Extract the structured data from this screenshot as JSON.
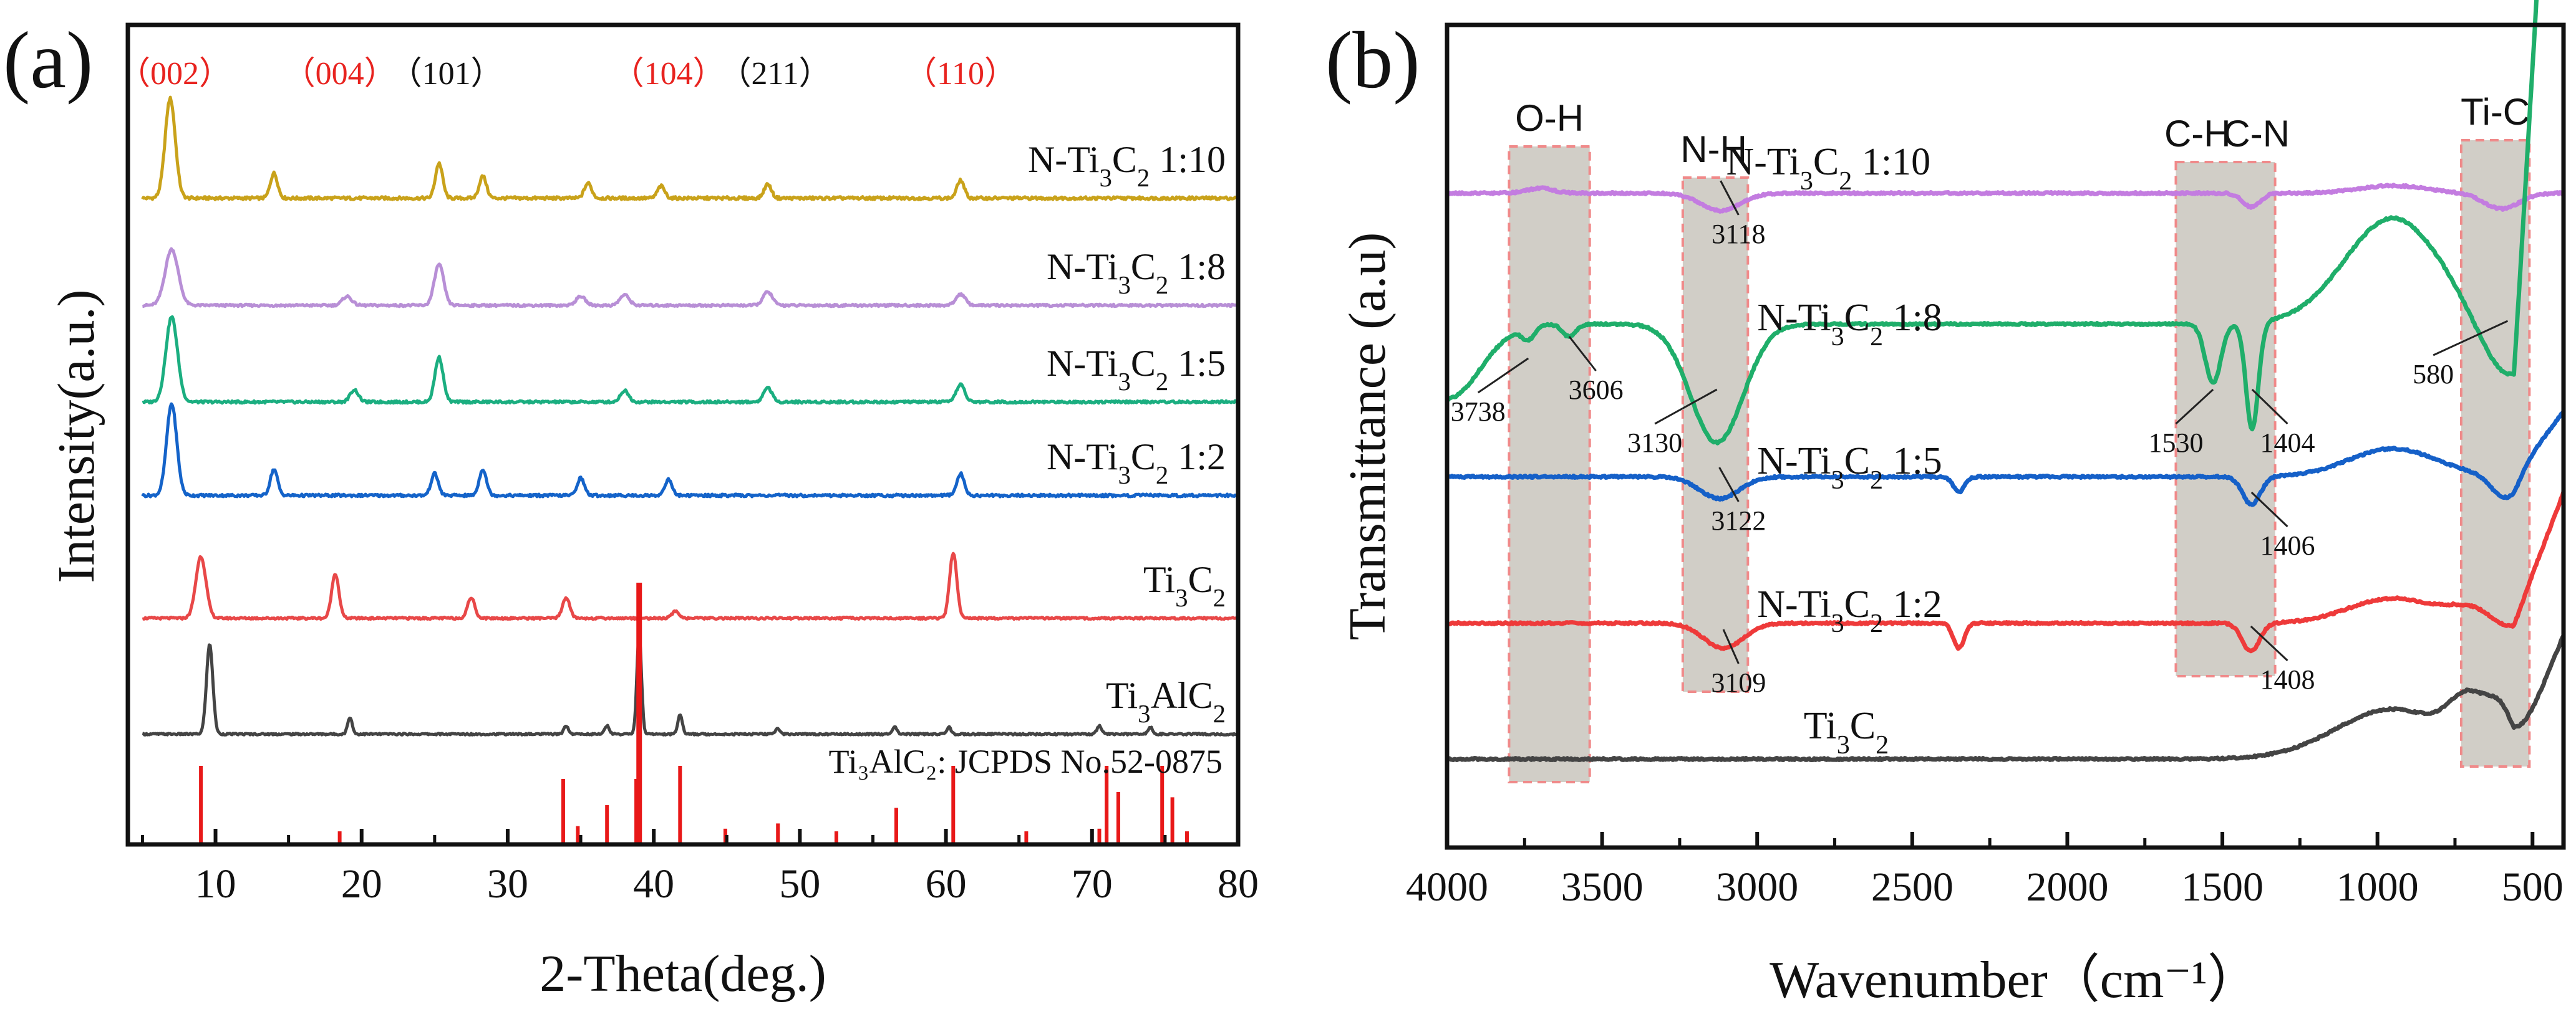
{
  "chart_data": [
    {
      "panel": "(a)",
      "type": "line",
      "xlabel": "2-Theta(deg.)",
      "ylabel": "Intensity(a.u.)",
      "xlim": [
        4,
        80
      ],
      "x_ticks": [
        10,
        20,
        30,
        40,
        50,
        60,
        70,
        80
      ],
      "plane_labels": [
        {
          "text": "（002）",
          "x": 7.2,
          "color": "#e8231f"
        },
        {
          "text": "（004）",
          "x": 18.5,
          "color": "#e8231f"
        },
        {
          "text": "（101）",
          "x": 25.8,
          "color": "#111111"
        },
        {
          "text": "（104）",
          "x": 41.0,
          "color": "#e8231f"
        },
        {
          "text": "（211）",
          "x": 48.3,
          "color": "#111111"
        },
        {
          "text": "（110）",
          "x": 61.0,
          "color": "#e8231f"
        }
      ],
      "series": [
        {
          "name": "N-Ti₃C₂  1:10",
          "color": "#c9a21a",
          "peaks": [
            [
              6.9,
              1.0
            ],
            [
              14.0,
              0.25
            ],
            [
              25.3,
              0.35
            ],
            [
              28.3,
              0.22
            ],
            [
              35.5,
              0.15
            ],
            [
              40.5,
              0.12
            ],
            [
              47.8,
              0.14
            ],
            [
              61.0,
              0.18
            ]
          ]
        },
        {
          "name": "N-Ti₃C₂  1:8",
          "color": "#b88fd6",
          "peaks": [
            [
              7.0,
              0.75
            ],
            [
              19.0,
              0.12
            ],
            [
              25.3,
              0.55
            ],
            [
              35.0,
              0.12
            ],
            [
              38.0,
              0.14
            ],
            [
              47.8,
              0.18
            ],
            [
              61.0,
              0.15
            ]
          ]
        },
        {
          "name": "N-Ti₃C₂  1:5",
          "color": "#1bae80",
          "peaks": [
            [
              7.0,
              1.05
            ],
            [
              19.5,
              0.15
            ],
            [
              25.3,
              0.55
            ],
            [
              38.0,
              0.14
            ],
            [
              47.8,
              0.18
            ],
            [
              61.0,
              0.22
            ]
          ]
        },
        {
          "name": "N-Ti₃C₂  1:2",
          "color": "#1463c9",
          "peaks": [
            [
              7.0,
              1.05
            ],
            [
              14.0,
              0.3
            ],
            [
              25.0,
              0.25
            ],
            [
              28.3,
              0.3
            ],
            [
              35.0,
              0.2
            ],
            [
              41.0,
              0.18
            ],
            [
              61.0,
              0.25
            ]
          ]
        },
        {
          "name": "Ti₃C₂",
          "color": "#e84848",
          "peaks": [
            [
              9.0,
              0.9
            ],
            [
              18.2,
              0.65
            ],
            [
              27.5,
              0.3
            ],
            [
              34.0,
              0.3
            ],
            [
              41.5,
              0.1
            ],
            [
              60.5,
              0.95
            ]
          ]
        },
        {
          "name": "Ti₃AlC₂",
          "color": "#444444",
          "peaks": [
            [
              9.6,
              1.6
            ],
            [
              19.2,
              0.3
            ],
            [
              34.0,
              0.15
            ],
            [
              36.8,
              0.15
            ],
            [
              39.0,
              1.8
            ],
            [
              41.8,
              0.35
            ],
            [
              48.5,
              0.1
            ],
            [
              56.5,
              0.12
            ],
            [
              60.2,
              0.12
            ],
            [
              70.5,
              0.15
            ],
            [
              74.0,
              0.12
            ]
          ]
        }
      ],
      "reference": {
        "label": "Ti₃AlC₂:  JCPDS No.52-0875",
        "color": "#e81818",
        "lines": [
          [
            9.0,
            0.3
          ],
          [
            18.5,
            0.05
          ],
          [
            33.8,
            0.25
          ],
          [
            34.8,
            0.07
          ],
          [
            36.8,
            0.15
          ],
          [
            38.8,
            0.25
          ],
          [
            39.0,
            1.0
          ],
          [
            41.8,
            0.3
          ],
          [
            44.9,
            0.06
          ],
          [
            48.5,
            0.08
          ],
          [
            52.5,
            0.05
          ],
          [
            56.6,
            0.14
          ],
          [
            60.5,
            0.3
          ],
          [
            65.5,
            0.05
          ],
          [
            70.5,
            0.06
          ],
          [
            71.0,
            0.3
          ],
          [
            71.8,
            0.2
          ],
          [
            74.8,
            0.3
          ],
          [
            75.5,
            0.18
          ],
          [
            76.5,
            0.05
          ]
        ]
      }
    },
    {
      "panel": "(b)",
      "type": "line",
      "xlabel": "Wavenumber（cm⁻¹）",
      "ylabel": "Transmittance (a.u)",
      "xlim": [
        4000,
        400
      ],
      "x_ticks": [
        4000,
        3500,
        3000,
        2500,
        2000,
        1500,
        1000,
        500
      ],
      "bands": [
        {
          "label": "O-H",
          "from": 3800,
          "to": 3540
        },
        {
          "label": "N-H",
          "from": 3240,
          "to": 3030
        },
        {
          "label": "C-H",
          "from": 1650,
          "to": 1330
        },
        {
          "label": "C-N",
          "from": 1650,
          "to": 1330
        },
        {
          "label": "Ti-C",
          "from": 730,
          "to": 510
        }
      ],
      "series": [
        {
          "name": "N-Ti₃C₂  1:10",
          "color": "#c37ce0",
          "annotations": [
            {
              "text": "3118",
              "x": 3118
            }
          ]
        },
        {
          "name": "N-Ti₃C₂  1:8",
          "color": "#1fae6a",
          "annotations": [
            {
              "text": "3738",
              "x": 3738
            },
            {
              "text": "3606",
              "x": 3606
            },
            {
              "text": "3130",
              "x": 3130
            },
            {
              "text": "1530",
              "x": 1530
            },
            {
              "text": "1404",
              "x": 1404
            },
            {
              "text": "580",
              "x": 580
            }
          ]
        },
        {
          "name": "N-Ti₃C₂  1:5",
          "color": "#1560c8",
          "annotations": [
            {
              "text": "3122",
              "x": 3122
            },
            {
              "text": "1406",
              "x": 1406
            }
          ]
        },
        {
          "name": "N-Ti₃C₂  1:2",
          "color": "#ee3a3a",
          "annotations": [
            {
              "text": "3109",
              "x": 3109
            },
            {
              "text": "1408",
              "x": 1408
            }
          ]
        },
        {
          "name": "Ti₃C₂",
          "color": "#444444",
          "annotations": []
        }
      ]
    }
  ]
}
